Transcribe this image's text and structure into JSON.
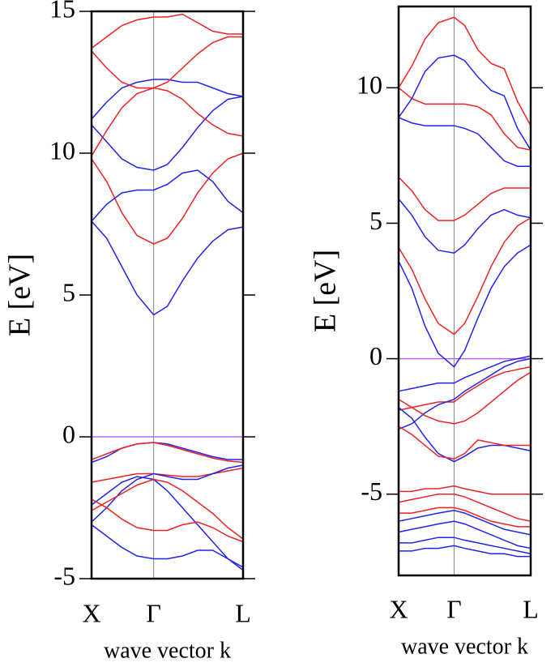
{
  "chart_data": [
    {
      "type": "line",
      "ylabel": "E [eV]",
      "xlabel": "wave vector k",
      "x": [
        0,
        0.1,
        0.2,
        0.3,
        0.41,
        0.5,
        0.6,
        0.7,
        0.8,
        0.9,
        1
      ],
      "xlim": [
        0,
        1
      ],
      "xticks": [
        {
          "value": 0,
          "label": "X"
        },
        {
          "value": 0.41,
          "label": "Γ"
        },
        {
          "value": 1,
          "label": "L"
        }
      ],
      "ylim": [
        -5,
        15
      ],
      "yticks": [
        -5,
        0,
        5,
        10,
        15
      ],
      "hline": {
        "value": 0,
        "color": "#b366ff"
      },
      "series": [
        {
          "color": "#2222ee",
          "values": [
            7.6,
            7.0,
            6.0,
            5.0,
            4.3,
            4.6,
            5.5,
            6.3,
            6.9,
            7.3,
            7.4
          ]
        },
        {
          "color": "#ee2222",
          "values": [
            9.8,
            9.0,
            7.9,
            7.1,
            6.8,
            7.0,
            7.7,
            8.6,
            9.3,
            9.8,
            10.0
          ]
        },
        {
          "color": "#2222ee",
          "values": [
            7.6,
            8.2,
            8.6,
            8.7,
            8.7,
            8.9,
            9.3,
            9.4,
            9.0,
            8.3,
            7.9
          ]
        },
        {
          "color": "#2222ee",
          "values": [
            11.0,
            10.4,
            9.8,
            9.5,
            9.4,
            9.6,
            10.2,
            10.9,
            11.5,
            11.9,
            12.0
          ]
        },
        {
          "color": "#2222ee",
          "values": [
            11.2,
            11.8,
            12.3,
            12.5,
            12.6,
            12.6,
            12.5,
            12.5,
            12.3,
            12.1,
            12.0
          ]
        },
        {
          "color": "#ee2222",
          "values": [
            9.9,
            10.8,
            11.6,
            12.1,
            12.3,
            12.2,
            11.9,
            11.4,
            11.0,
            10.7,
            10.6
          ]
        },
        {
          "color": "#ee2222",
          "values": [
            13.6,
            13.0,
            12.5,
            12.3,
            12.3,
            12.5,
            13.0,
            13.5,
            13.9,
            14.1,
            14.1
          ]
        },
        {
          "color": "#ee2222",
          "values": [
            13.7,
            14.1,
            14.5,
            14.7,
            14.8,
            14.8,
            14.9,
            14.6,
            14.3,
            14.2,
            14.2
          ]
        },
        {
          "color": "#2222ee",
          "values": [
            -0.9,
            -0.7,
            -0.4,
            -0.25,
            -0.2,
            -0.25,
            -0.4,
            -0.55,
            -0.7,
            -0.8,
            -0.8
          ]
        },
        {
          "color": "#ee2222",
          "values": [
            -0.8,
            -0.6,
            -0.4,
            -0.25,
            -0.2,
            -0.3,
            -0.45,
            -0.6,
            -0.75,
            -0.85,
            -0.9
          ]
        },
        {
          "color": "#ee2222",
          "values": [
            -1.6,
            -1.5,
            -1.4,
            -1.3,
            -1.3,
            -1.35,
            -1.4,
            -1.4,
            -1.3,
            -1.2,
            -1.1
          ]
        },
        {
          "color": "#2222ee",
          "values": [
            -2.4,
            -2.0,
            -1.6,
            -1.4,
            -1.5,
            -1.9,
            -2.5,
            -3.1,
            -3.7,
            -4.3,
            -4.7
          ]
        },
        {
          "color": "#2222ee",
          "values": [
            -3.0,
            -2.5,
            -1.9,
            -1.5,
            -1.3,
            -1.4,
            -1.5,
            -1.5,
            -1.3,
            -1.1,
            -1.0
          ]
        },
        {
          "color": "#ee2222",
          "values": [
            -2.2,
            -2.5,
            -2.9,
            -3.2,
            -3.3,
            -3.3,
            -3.1,
            -3.0,
            -3.2,
            -3.5,
            -3.7
          ]
        },
        {
          "color": "#2222ee",
          "values": [
            -3.1,
            -3.5,
            -3.9,
            -4.2,
            -4.3,
            -4.3,
            -4.2,
            -4.0,
            -4.0,
            -4.3,
            -4.6
          ]
        },
        {
          "color": "#ee2222",
          "values": [
            -2.6,
            -2.3,
            -2.0,
            -1.7,
            -1.5,
            -1.6,
            -1.9,
            -2.3,
            -2.7,
            -3.2,
            -3.6
          ]
        }
      ]
    },
    {
      "type": "line",
      "ylabel": "E [eV]",
      "xlabel": "wave vector k",
      "x": [
        0,
        0.1,
        0.2,
        0.3,
        0.42,
        0.5,
        0.6,
        0.7,
        0.8,
        0.9,
        1
      ],
      "xlim": [
        0,
        1
      ],
      "xticks": [
        {
          "value": 0,
          "label": "X"
        },
        {
          "value": 0.42,
          "label": "Γ"
        },
        {
          "value": 1,
          "label": "L"
        }
      ],
      "ylim": [
        -8,
        13
      ],
      "yticks": [
        -5,
        0,
        5,
        10
      ],
      "hline": {
        "value": 0,
        "color": "#b366ff"
      },
      "series": [
        {
          "color": "#2222ee",
          "values": [
            3.6,
            2.6,
            1.2,
            0.2,
            -0.3,
            0.3,
            1.5,
            2.6,
            3.4,
            3.9,
            4.2
          ]
        },
        {
          "color": "#ee2222",
          "values": [
            4.1,
            3.3,
            2.2,
            1.3,
            0.9,
            1.3,
            2.3,
            3.4,
            4.3,
            4.9,
            5.2
          ]
        },
        {
          "color": "#2222ee",
          "values": [
            5.9,
            5.3,
            4.5,
            4.0,
            3.9,
            4.2,
            4.8,
            5.3,
            5.5,
            5.3,
            5.2
          ]
        },
        {
          "color": "#ee2222",
          "values": [
            6.7,
            6.2,
            5.5,
            5.1,
            5.1,
            5.3,
            5.7,
            6.1,
            6.3,
            6.3,
            6.3
          ]
        },
        {
          "color": "#2222ee",
          "values": [
            8.9,
            8.7,
            8.6,
            8.6,
            8.6,
            8.5,
            8.3,
            7.8,
            7.3,
            7.1,
            7.1
          ]
        },
        {
          "color": "#ee2222",
          "values": [
            10.0,
            9.6,
            9.4,
            9.4,
            9.4,
            9.4,
            9.3,
            9.0,
            8.3,
            7.8,
            7.7
          ]
        },
        {
          "color": "#2222ee",
          "values": [
            8.9,
            9.6,
            10.6,
            11.1,
            11.2,
            11.0,
            10.4,
            9.9,
            9.7,
            8.5,
            7.7
          ]
        },
        {
          "color": "#ee2222",
          "values": [
            10.0,
            10.8,
            11.8,
            12.4,
            12.6,
            12.3,
            11.4,
            10.9,
            10.7,
            9.5,
            8.6
          ]
        },
        {
          "color": "#2222ee",
          "values": [
            -1.2,
            -1.1,
            -1.0,
            -0.9,
            -0.9,
            -0.7,
            -0.5,
            -0.3,
            -0.1,
            0.0,
            0.1
          ]
        },
        {
          "color": "#ee2222",
          "values": [
            -1.9,
            -1.8,
            -1.7,
            -1.6,
            -1.6,
            -1.3,
            -1.0,
            -0.7,
            -0.5,
            -0.4,
            -0.3
          ]
        },
        {
          "color": "#2222ee",
          "values": [
            -2.6,
            -2.4,
            -2.0,
            -1.7,
            -1.5,
            -1.2,
            -0.9,
            -0.6,
            -0.3,
            -0.1,
            0.0
          ]
        },
        {
          "color": "#ee2222",
          "values": [
            -1.5,
            -1.8,
            -2.1,
            -2.3,
            -2.4,
            -2.3,
            -2.0,
            -1.6,
            -1.2,
            -0.8,
            -0.5
          ]
        },
        {
          "color": "#2222ee",
          "values": [
            -1.8,
            -2.2,
            -2.9,
            -3.5,
            -3.8,
            -3.6,
            -3.3,
            -3.2,
            -3.2,
            -3.3,
            -3.4
          ]
        },
        {
          "color": "#ee2222",
          "values": [
            -2.5,
            -2.8,
            -3.2,
            -3.6,
            -3.7,
            -3.5,
            -3.0,
            -3.1,
            -3.2,
            -3.2,
            -3.2
          ]
        },
        {
          "color": "#ee2222",
          "values": [
            -4.9,
            -4.9,
            -4.8,
            -4.8,
            -4.7,
            -4.8,
            -4.9,
            -5.0,
            -5.0,
            -5.0,
            -5.0
          ]
        },
        {
          "color": "#ee2222",
          "values": [
            -5.3,
            -5.2,
            -5.1,
            -5.0,
            -5.0,
            -5.1,
            -5.3,
            -5.5,
            -5.7,
            -5.9,
            -6.0
          ]
        },
        {
          "color": "#ee2222",
          "values": [
            -5.7,
            -5.7,
            -5.6,
            -5.5,
            -5.5,
            -5.6,
            -5.8,
            -6.0,
            -6.1,
            -6.2,
            -6.2
          ]
        },
        {
          "color": "#2222ee",
          "values": [
            -6.0,
            -5.9,
            -5.8,
            -5.7,
            -5.6,
            -5.7,
            -5.9,
            -6.1,
            -6.3,
            -6.4,
            -6.5
          ]
        },
        {
          "color": "#2222ee",
          "values": [
            -6.4,
            -6.3,
            -6.2,
            -6.1,
            -6.0,
            -6.1,
            -6.3,
            -6.5,
            -6.7,
            -6.9,
            -7.0
          ]
        },
        {
          "color": "#2222ee",
          "values": [
            -6.8,
            -6.8,
            -6.7,
            -6.6,
            -6.6,
            -6.7,
            -6.8,
            -6.9,
            -7.0,
            -7.1,
            -7.2
          ]
        },
        {
          "color": "#2222ee",
          "values": [
            -7.1,
            -7.1,
            -7.0,
            -7.0,
            -6.9,
            -7.0,
            -7.1,
            -7.2,
            -7.2,
            -7.3,
            -7.3
          ]
        }
      ]
    }
  ]
}
